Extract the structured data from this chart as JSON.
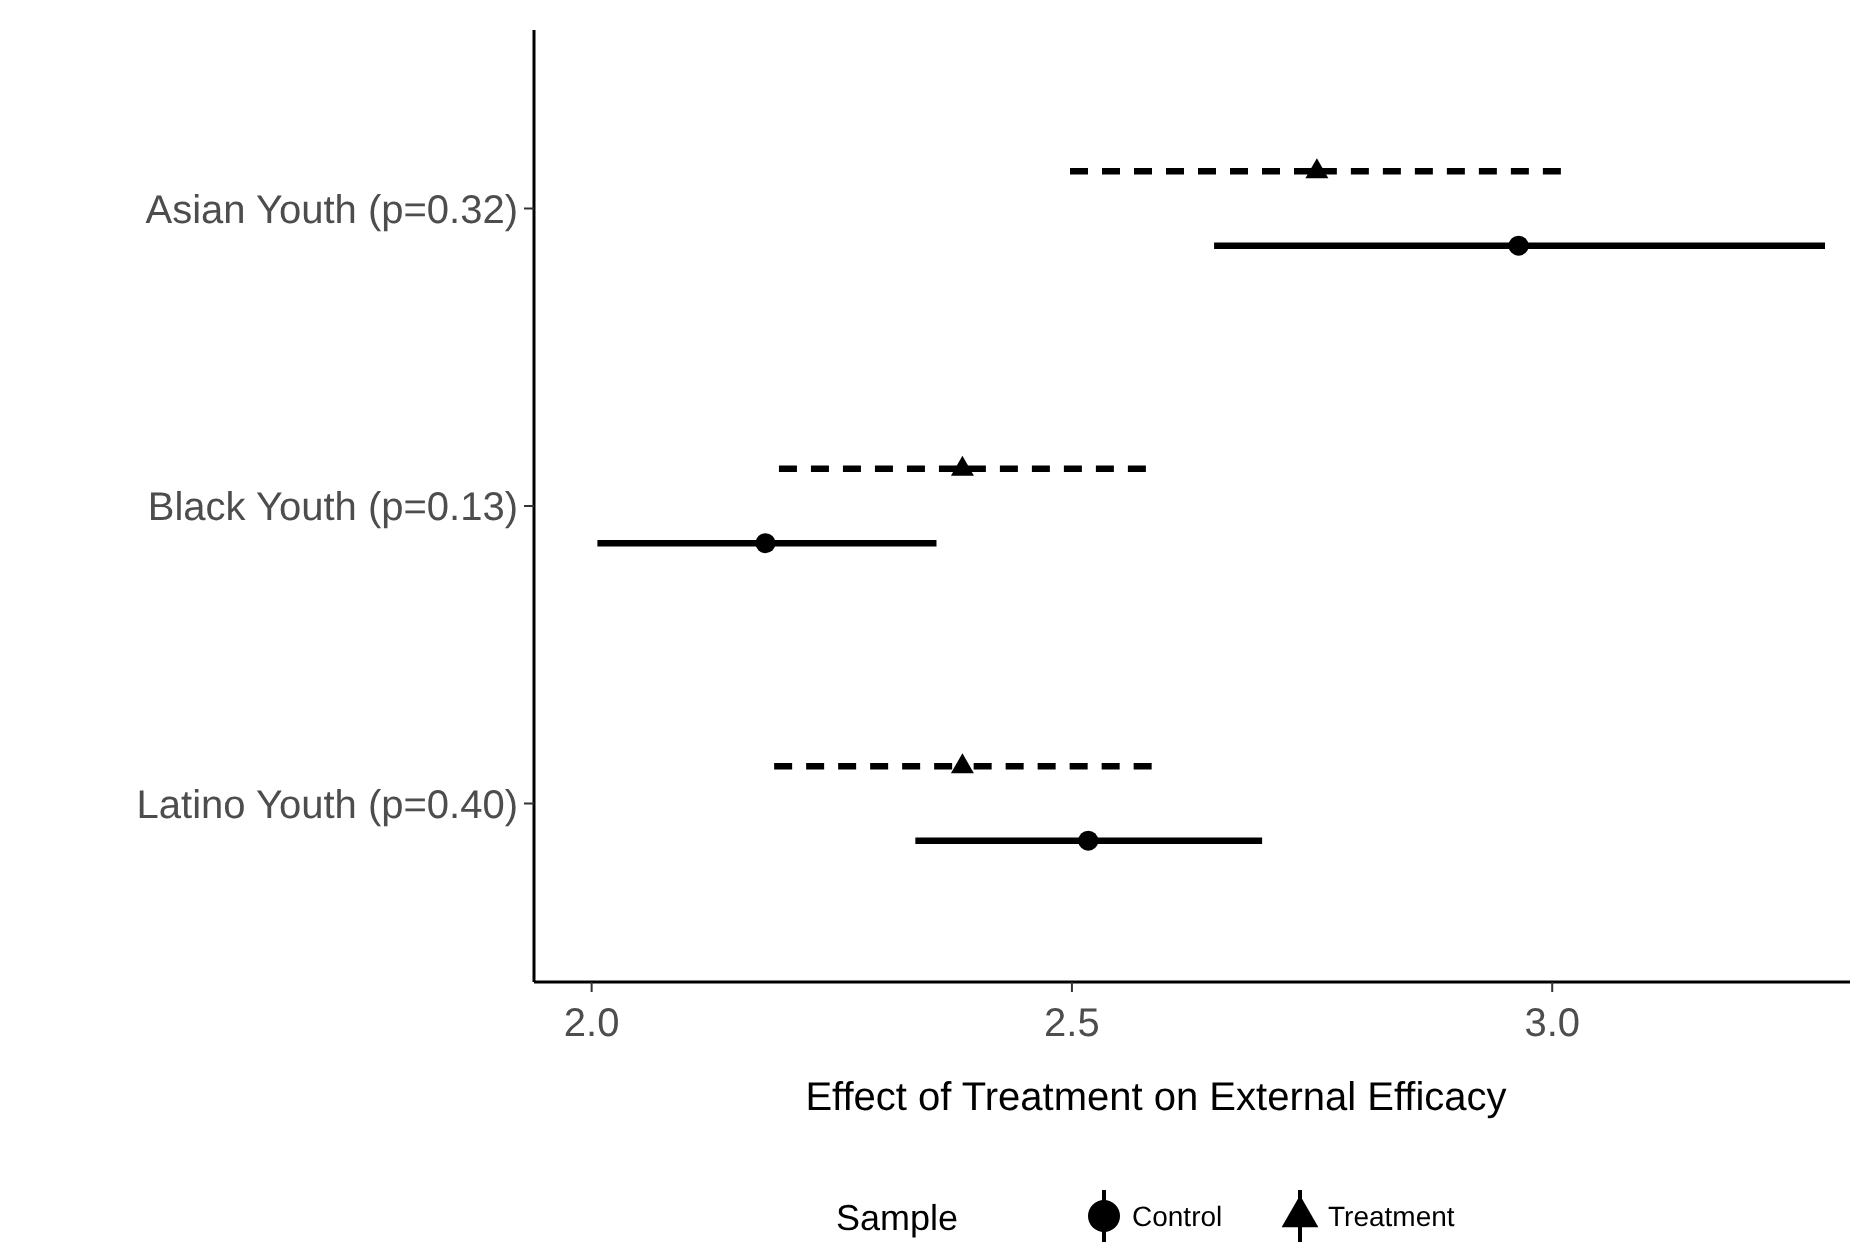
{
  "chart_data": {
    "type": "scatter",
    "orientation": "horizontal",
    "xlabel": "Effect of Treatment on External Efficacy",
    "legend_title": "Sample",
    "legend": "bottom",
    "grid": false,
    "categories": [
      "Asian Youth (p=0.32)",
      "Black Youth (p=0.13)",
      "Latino Youth (p=0.40)"
    ],
    "xlim": [
      1.94,
      3.31
    ],
    "xticks": [
      {
        "value": 2,
        "label": "2.0"
      },
      2.5,
      {
        "value": 3,
        "label": "3.0"
      }
    ],
    "series": [
      {
        "name": "Control",
        "color": "#000000",
        "marker": "circle",
        "line_style": "solid",
        "values": [
          2.965,
          2.181,
          2.517
        ],
        "errors": [
          [
            2.648,
            3.284
          ],
          [
            2.006,
            2.359
          ],
          [
            2.337,
            2.698
          ]
        ]
      },
      {
        "name": "Treatment",
        "color": "#000000",
        "marker": "triangle",
        "line_style": "dashed",
        "values": [
          2.755,
          2.386,
          2.386
        ],
        "errors": [
          [
            2.498,
            3.009
          ],
          [
            2.195,
            2.577
          ],
          [
            2.19,
            2.583
          ]
        ]
      }
    ]
  }
}
